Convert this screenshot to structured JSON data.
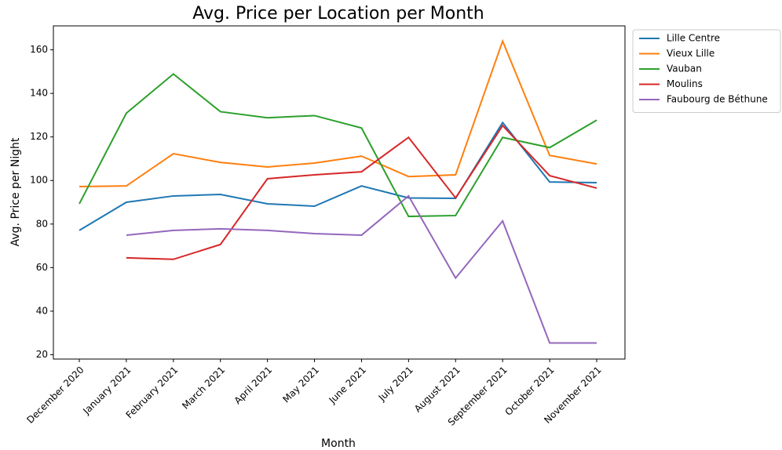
{
  "chart_data": {
    "type": "line",
    "title": "Avg. Price per Location per Month",
    "x_label": "Month",
    "y_label": "Avg. Price per Night",
    "categories": [
      "December 2020",
      "January 2021",
      "February 2021",
      "March 2021",
      "April 2021",
      "May 2021",
      "June 2021",
      "July 2021",
      "August 2021",
      "September 2021",
      "October 2021",
      "November 2021"
    ],
    "series": [
      {
        "name": "Lille Centre",
        "color": "#1f77b4",
        "values": [
          77.1,
          90,
          92.9,
          93.6,
          89.3,
          88.2,
          97.5,
          92,
          91.8,
          126.6,
          99.3,
          99
        ]
      },
      {
        "name": "Vieux Lille",
        "color": "#ff7f0e",
        "values": [
          97.2,
          97.5,
          112.3,
          108.3,
          106.2,
          108,
          111.2,
          101.8,
          102.6,
          164,
          111.5,
          107.6
        ]
      },
      {
        "name": "Vauban",
        "color": "#2ca02c",
        "values": [
          89.3,
          130.9,
          148.9,
          131.6,
          128.8,
          129.8,
          124.1,
          83.5,
          83.9,
          119.8,
          115.1,
          127.7
        ]
      },
      {
        "name": "Moulins",
        "color": "#d62728",
        "values": [
          null,
          64.5,
          63.8,
          70.6,
          100.8,
          102.6,
          104,
          119.8,
          92,
          125.2,
          102.2,
          96.5
        ]
      },
      {
        "name": "Faubourg de Béthune",
        "color": "#9467bd",
        "values": [
          null,
          74.9,
          77.1,
          77.8,
          77.1,
          75.6,
          74.9,
          92.9,
          55.2,
          81.4,
          25.4,
          25.4
        ]
      }
    ],
    "ylim": [
      18,
      171
    ],
    "yticks": [
      20,
      40,
      60,
      80,
      100,
      120,
      140,
      160
    ],
    "legend": "outside-upper-right"
  }
}
